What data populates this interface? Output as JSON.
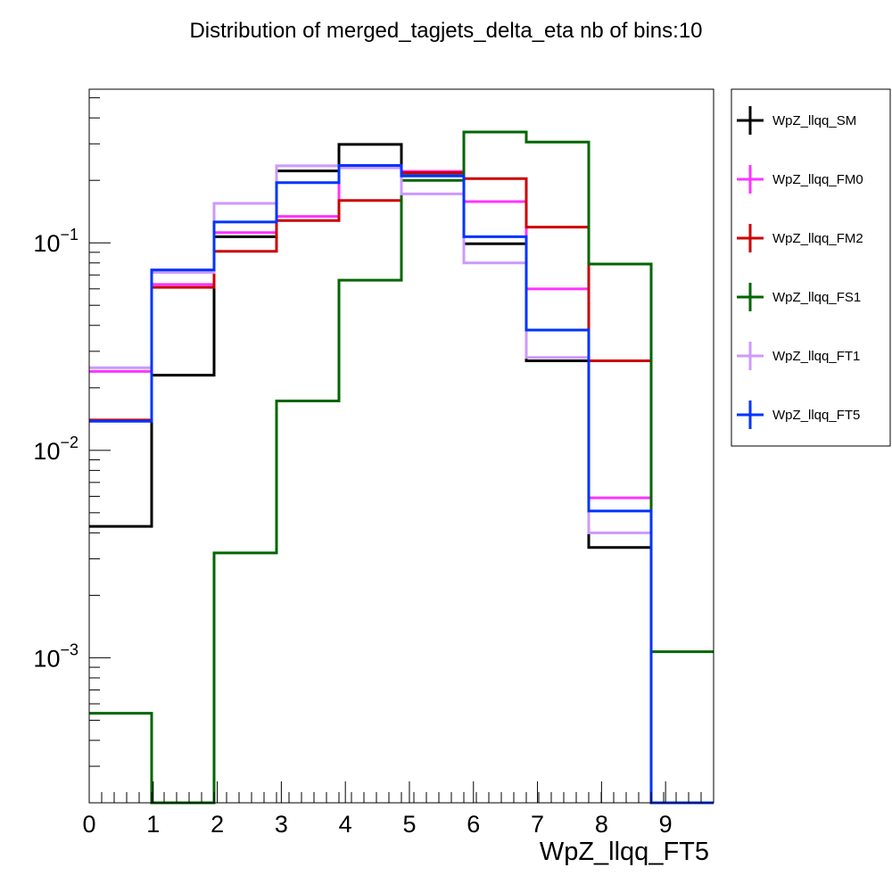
{
  "chart_data": {
    "type": "step",
    "title": "Distribution of merged_tagjets_delta_eta nb of bins:10",
    "xlabel": "WpZ_llqq_FT5",
    "ylabel": "",
    "yscale": "log",
    "xlim": [
      0,
      9.75
    ],
    "ylim": [
      0.0002,
      0.55
    ],
    "bin_edges": [
      0,
      0.975,
      1.95,
      2.925,
      3.9,
      4.875,
      5.85,
      6.825,
      7.8,
      8.775,
      9.75
    ],
    "x_tick_labels": [
      "0",
      "1",
      "2",
      "3",
      "4",
      "5",
      "6",
      "7",
      "8",
      "9"
    ],
    "x_tick_values": [
      0,
      1,
      2,
      3,
      4,
      5,
      6,
      7,
      8,
      9
    ],
    "y_tick_values": [
      0.1,
      0.01,
      0.001
    ],
    "y_tick_labels": [
      {
        "base": "10",
        "exp": "−1"
      },
      {
        "base": "10",
        "exp": "−2"
      },
      {
        "base": "10",
        "exp": "−3"
      }
    ],
    "grid": false,
    "legend_position": "right",
    "series": [
      {
        "name": "WpZ_llqq_SM",
        "color": "#000000",
        "values": [
          0.0043,
          0.023,
          0.107,
          0.222,
          0.298,
          0.211,
          0.099,
          0.027,
          0.0034,
          0.0002
        ]
      },
      {
        "name": "WpZ_llqq_FM0",
        "color": "#ff33ff",
        "values": [
          0.024,
          0.063,
          0.112,
          0.134,
          0.232,
          0.221,
          0.158,
          0.06,
          0.0059,
          0.0002
        ]
      },
      {
        "name": "WpZ_llqq_FM2",
        "color": "#cc0000",
        "values": [
          0.014,
          0.061,
          0.091,
          0.128,
          0.16,
          0.218,
          0.204,
          0.119,
          0.027,
          0.0002
        ]
      },
      {
        "name": "WpZ_llqq_FS1",
        "color": "#006600",
        "values": [
          0.00054,
          0.0002,
          0.0032,
          0.0173,
          0.066,
          0.2,
          0.342,
          0.306,
          0.079,
          0.00107
        ]
      },
      {
        "name": "WpZ_llqq_FT1",
        "color": "#cc99ff",
        "values": [
          0.025,
          0.072,
          0.155,
          0.235,
          0.23,
          0.172,
          0.08,
          0.028,
          0.004,
          0.0002
        ]
      },
      {
        "name": "WpZ_llqq_FT5",
        "color": "#0033ff",
        "values": [
          0.0138,
          0.074,
          0.126,
          0.195,
          0.236,
          0.21,
          0.107,
          0.038,
          0.0051,
          0.0002
        ]
      }
    ]
  }
}
